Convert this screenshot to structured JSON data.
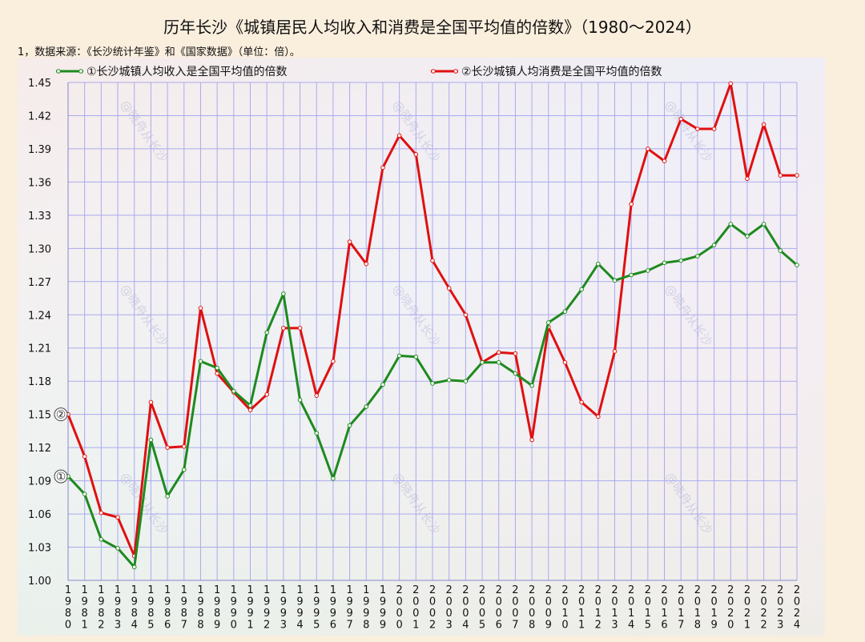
{
  "title": "历年长沙《城镇居民人均收入和消费是全国平均值的倍数》（1980～2024）",
  "note": "1，数据来源：《长沙统计年鉴》和《国家数据》（单位：倍）。",
  "watermark": "@晓舟从长沙",
  "colors": {
    "income": "#1e8a1e",
    "consumption": "#e01010",
    "grid": "#aaaaee",
    "marker_fill": "#ffffff"
  },
  "chart_data": {
    "type": "line",
    "ylim": [
      1.0,
      1.45
    ],
    "yticks": [
      "1.00",
      "1.03",
      "1.06",
      "1.09",
      "1.12",
      "1.15",
      "1.18",
      "1.21",
      "1.24",
      "1.27",
      "1.30",
      "1.33",
      "1.36",
      "1.39",
      "1.42",
      "1.45"
    ],
    "x": [
      "1980",
      "1981",
      "1982",
      "1983",
      "1984",
      "1985",
      "1986",
      "1987",
      "1988",
      "1989",
      "1990",
      "1991",
      "1992",
      "1993",
      "1994",
      "1995",
      "1996",
      "1997",
      "1998",
      "1999",
      "2000",
      "2001",
      "2002",
      "2003",
      "2004",
      "2005",
      "2006",
      "2007",
      "2008",
      "2009",
      "2010",
      "2011",
      "2012",
      "2013",
      "2014",
      "2015",
      "2016",
      "2017",
      "2018",
      "2019",
      "2020",
      "2021",
      "2022",
      "2023",
      "2024"
    ],
    "grid": true,
    "legend_position": "top",
    "series": [
      {
        "name": "①长沙城镇人均收入是全国平均值的倍数",
        "marker_label": "①",
        "values": [
          1.094,
          1.078,
          1.037,
          1.029,
          1.012,
          1.127,
          1.076,
          1.1,
          1.198,
          1.192,
          1.171,
          1.158,
          1.224,
          1.259,
          1.163,
          1.133,
          1.092,
          1.14,
          1.157,
          1.177,
          1.203,
          1.202,
          1.178,
          1.181,
          1.18,
          1.197,
          1.197,
          1.187,
          1.176,
          1.233,
          1.243,
          1.263,
          1.286,
          1.271,
          1.276,
          1.28,
          1.287,
          1.289,
          1.293,
          1.303,
          1.322,
          1.311,
          1.322,
          1.298,
          1.285
        ]
      },
      {
        "name": "②长沙城镇人均消费是全国平均值的倍数",
        "marker_label": "②",
        "values": [
          1.15,
          1.112,
          1.061,
          1.057,
          1.022,
          1.161,
          1.12,
          1.121,
          1.246,
          1.187,
          1.17,
          1.154,
          1.168,
          1.228,
          1.228,
          1.167,
          1.198,
          1.306,
          1.286,
          1.373,
          1.402,
          1.385,
          1.289,
          1.264,
          1.24,
          1.197,
          1.206,
          1.205,
          1.127,
          1.229,
          1.197,
          1.161,
          1.148,
          1.207,
          1.34,
          1.39,
          1.379,
          1.417,
          1.408,
          1.408,
          1.449,
          1.363,
          1.412,
          1.366,
          1.366
        ]
      }
    ]
  }
}
